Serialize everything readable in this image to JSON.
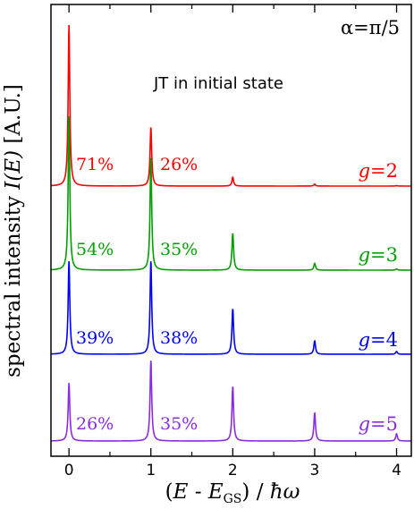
{
  "chart_data": {
    "type": "line",
    "annotation_top_right": "α=π/5",
    "annotation_center": "JT in initial state",
    "ylabel": "spectral intensity",
    "ylabel_symbol": "I(E)",
    "ylabel_units": "[A.U.]",
    "xlabel": "(E - E_GS) / ħω",
    "xlim": [
      -0.22,
      4.18
    ],
    "xticks": [
      0,
      1,
      2,
      3,
      4
    ],
    "xtick_labels": [
      "0",
      "1",
      "2",
      "3",
      "4"
    ],
    "grid": false,
    "series": [
      {
        "name": "g=2",
        "color": "#ff0000",
        "peaks": [
          {
            "x": 0,
            "height": 1.0
          },
          {
            "x": 1,
            "height": 0.365
          },
          {
            "x": 2,
            "height": 0.055
          },
          {
            "x": 3,
            "height": 0.012
          },
          {
            "x": 4,
            "height": 0.003
          }
        ],
        "weight_labels": [
          "71%",
          "26%"
        ]
      },
      {
        "name": "g=3",
        "color": "#00a000",
        "peaks": [
          {
            "x": 0,
            "height": 1.0
          },
          {
            "x": 1,
            "height": 0.73
          },
          {
            "x": 2,
            "height": 0.24
          },
          {
            "x": 3,
            "height": 0.045
          },
          {
            "x": 4,
            "height": 0.008
          }
        ],
        "weight_labels": [
          "54%",
          "35%"
        ]
      },
      {
        "name": "g=4",
        "color": "#0000ff",
        "peaks": [
          {
            "x": 0,
            "height": 1.0
          },
          {
            "x": 1,
            "height": 1.0
          },
          {
            "x": 2,
            "height": 0.49
          },
          {
            "x": 3,
            "height": 0.145
          },
          {
            "x": 4,
            "height": 0.03
          }
        ],
        "weight_labels": [
          "39%",
          "38%"
        ]
      },
      {
        "name": "g=5",
        "color": "#8a2be2",
        "peaks": [
          {
            "x": 0,
            "height": 0.72
          },
          {
            "x": 1,
            "height": 1.0
          },
          {
            "x": 2,
            "height": 0.68
          },
          {
            "x": 3,
            "height": 0.35
          },
          {
            "x": 4,
            "height": 0.09
          }
        ],
        "weight_labels": [
          "26%",
          "35%"
        ]
      }
    ]
  }
}
